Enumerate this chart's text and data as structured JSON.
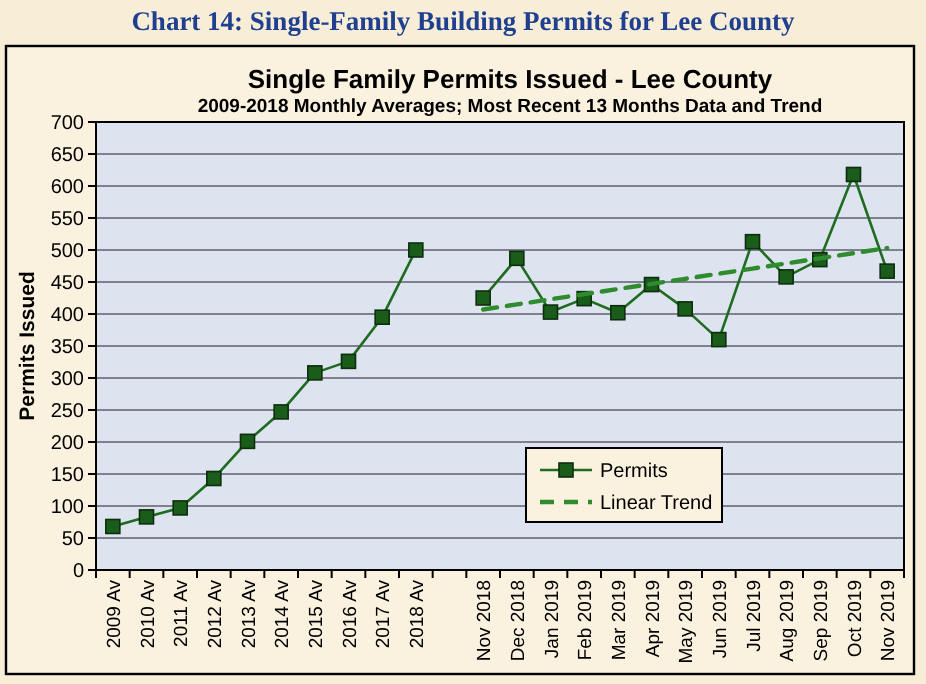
{
  "chart_data": {
    "type": "line",
    "title": "Single Family Permits Issued - Lee County",
    "subtitle": "2009-2018 Monthly Averages; Most Recent 13 Months Data and Trend",
    "annotations": [
      "Chart 14: Single-Family Building Permits for Lee County"
    ],
    "ylabel": "Permits Issued",
    "categories": [
      "2009 Av",
      "2010 Av",
      "2011 Av",
      "2012 Av",
      "2013 Av",
      "2014 Av",
      "2015 Av",
      "2016 Av",
      "2017 Av",
      "2018 Av",
      null,
      "Nov 2018",
      "Dec 2018",
      "Jan 2019",
      "Feb 2019",
      "Mar 2019",
      "Apr 2019",
      "May 2019",
      "Jun 2019",
      "Jul 2019",
      "Aug 2019",
      "Sep 2019",
      "Oct 2019",
      "Nov 2019"
    ],
    "series": [
      {
        "name": "Permits",
        "color": "#1f6b1f",
        "marker": "square",
        "line_style": "solid",
        "values": [
          68,
          83,
          97,
          143,
          201,
          247,
          308,
          326,
          395,
          500,
          null,
          425,
          487,
          403,
          424,
          402,
          446,
          408,
          360,
          513,
          458,
          485,
          618,
          467
        ]
      },
      {
        "name": "Linear Trend",
        "color": "#2e8b2e",
        "marker": "none",
        "line_style": "dashed",
        "values": [
          null,
          null,
          null,
          null,
          null,
          null,
          null,
          null,
          null,
          null,
          null,
          407,
          415,
          423,
          431,
          439,
          447,
          455,
          463,
          471,
          479,
          487,
          495,
          503
        ]
      }
    ],
    "ylim": [
      0,
      700
    ],
    "yticks": [
      0,
      50,
      100,
      150,
      200,
      250,
      300,
      350,
      400,
      450,
      500,
      550,
      600,
      650,
      700
    ],
    "grid": "y",
    "legend": "bottom right"
  }
}
